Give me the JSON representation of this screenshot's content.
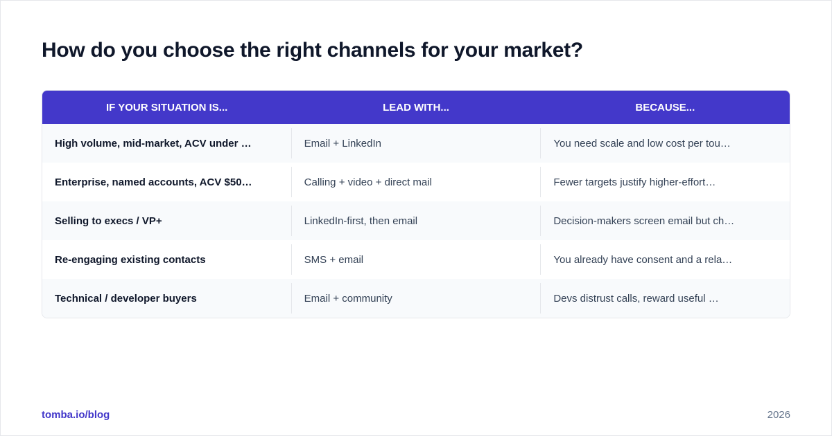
{
  "header": {
    "title": "How do you choose the right channels for your market?"
  },
  "table": {
    "columns": [
      "IF YOUR SITUATION IS...",
      "LEAD WITH...",
      "BECAUSE..."
    ],
    "rows": [
      [
        "High volume, mid-market, ACV under …",
        "Email + LinkedIn",
        "You need scale and low cost per tou…"
      ],
      [
        "Enterprise, named accounts, ACV $50…",
        "Calling + video + direct mail",
        "Fewer targets justify higher-effort…"
      ],
      [
        "Selling to execs / VP+",
        "LinkedIn-first, then email",
        "Decision-makers screen email but ch…"
      ],
      [
        "Re-engaging existing contacts",
        "SMS + email",
        "You already have consent and a rela…"
      ],
      [
        "Technical / developer buyers",
        "Email + community",
        "Devs distrust calls, reward useful …"
      ]
    ]
  },
  "footer": {
    "source": "tomba.io/blog",
    "year": "2026"
  }
}
